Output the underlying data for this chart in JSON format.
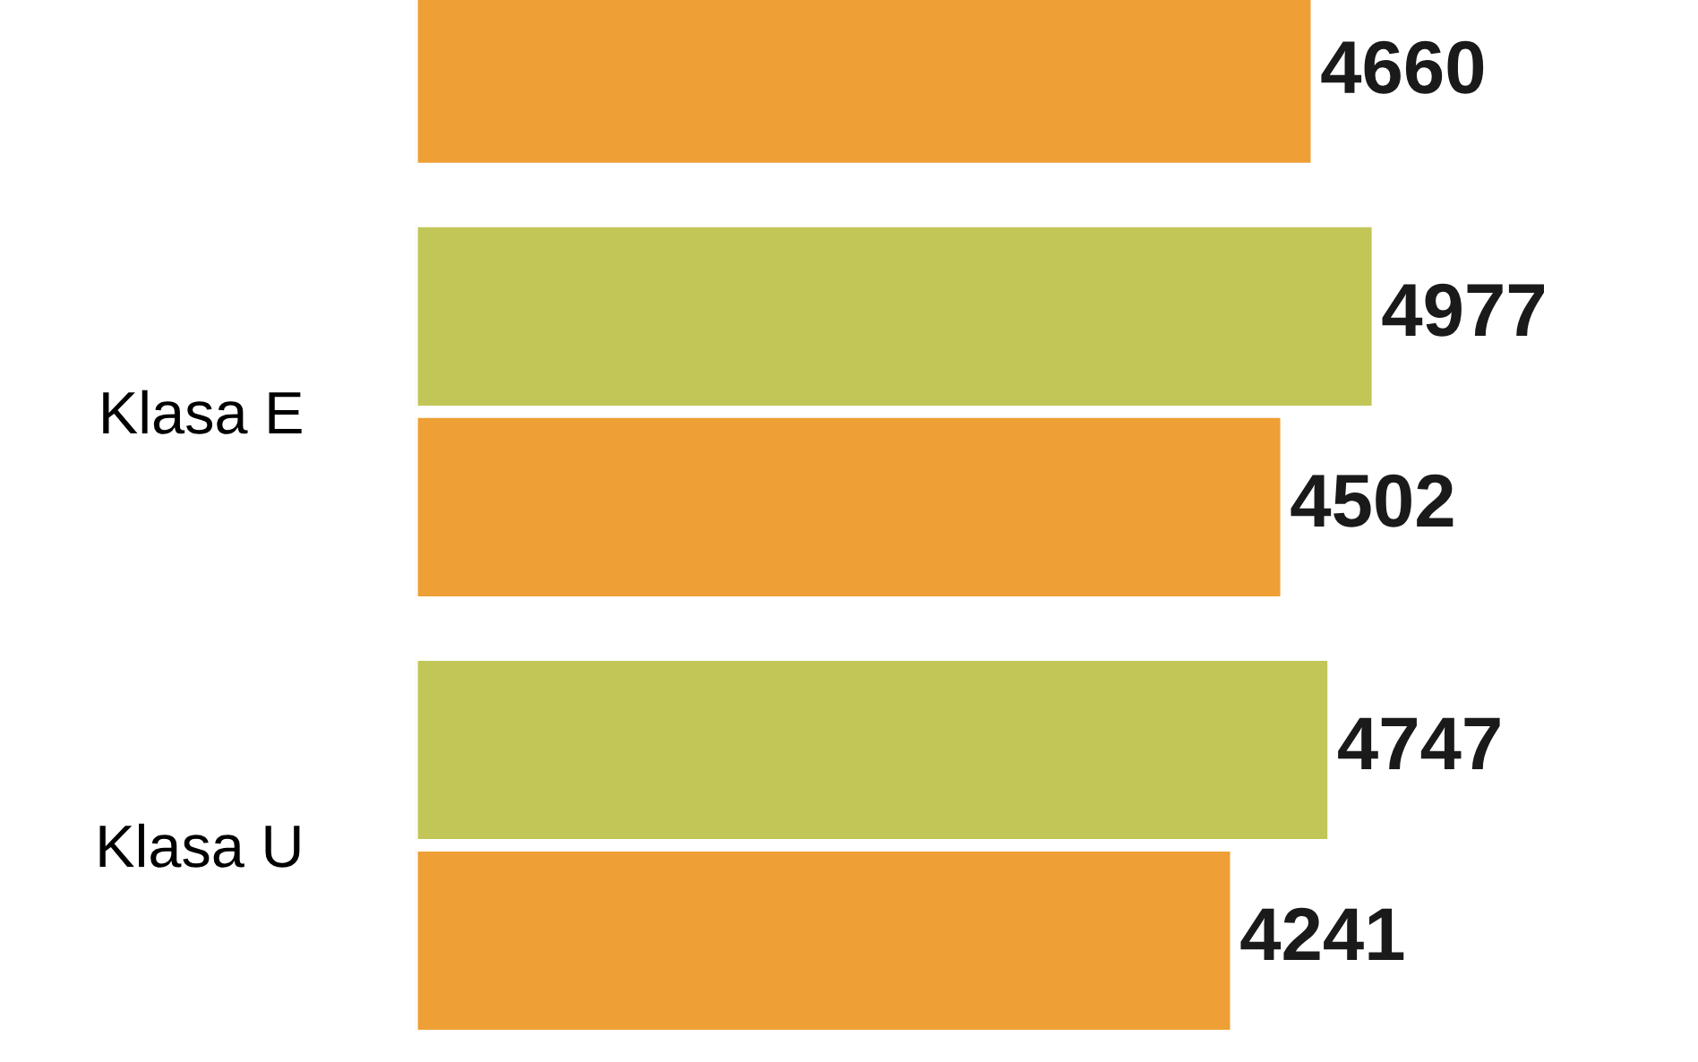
{
  "chart_data": {
    "type": "bar",
    "orientation": "horizontal",
    "categories": [
      null,
      "Klasa E",
      "Klasa U"
    ],
    "series": [
      {
        "color": "#c2c657",
        "values": [
          null,
          4977,
          4747
        ]
      },
      {
        "color": "#ee9f35",
        "values": [
          4660,
          4502,
          4241
        ]
      }
    ],
    "data_labels": true,
    "tick_labels": "y",
    "grid": false
  }
}
